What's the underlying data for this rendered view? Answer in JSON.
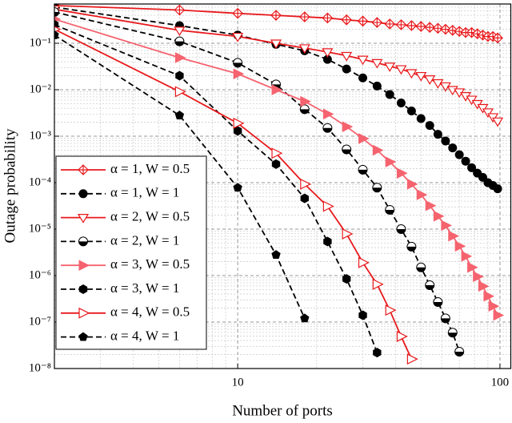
{
  "chart_data": {
    "type": "line",
    "xlabel": "Number of ports",
    "ylabel": "Outage probability",
    "xscale": "log",
    "yscale": "log",
    "xlim": [
      2,
      110
    ],
    "ylim": [
      1e-08,
      0.7
    ],
    "xticks": [
      10,
      100
    ],
    "yticks": [
      {
        "value": 1e-08,
        "label": "10⁻⁸"
      },
      {
        "value": 1e-07,
        "label": "10⁻⁷"
      },
      {
        "value": 1e-06,
        "label": "10⁻⁶"
      },
      {
        "value": 1e-05,
        "label": "10⁻⁵"
      },
      {
        "value": 0.0001,
        "label": "10⁻⁴"
      },
      {
        "value": 0.001,
        "label": "10⁻³"
      },
      {
        "value": 0.01,
        "label": "10⁻²"
      },
      {
        "value": 0.1,
        "label": "10⁻¹"
      }
    ],
    "xminorticks": [
      3,
      4,
      5,
      6,
      7,
      8,
      9,
      20,
      30,
      40,
      50,
      60,
      70,
      80,
      90
    ],
    "yminorticks": [
      2e-08,
      3e-08,
      4e-08,
      5e-08,
      6e-08,
      7e-08,
      8e-08,
      9e-08,
      2e-07,
      3e-07,
      4e-07,
      5e-07,
      6e-07,
      7e-07,
      8e-07,
      9e-07,
      2e-06,
      3e-06,
      4e-06,
      5e-06,
      6e-06,
      7e-06,
      8e-06,
      9e-06,
      2e-05,
      3e-05,
      4e-05,
      5e-05,
      6e-05,
      7e-05,
      8e-05,
      9e-05,
      0.0002,
      0.0003,
      0.0004,
      0.0005,
      0.0006,
      0.0007,
      0.0008,
      0.0009,
      0.002,
      0.003,
      0.004,
      0.005,
      0.006,
      0.007,
      0.008,
      0.009,
      0.02,
      0.03,
      0.04,
      0.05,
      0.06,
      0.07,
      0.08,
      0.09,
      0.2,
      0.3,
      0.4,
      0.5,
      0.6
    ],
    "grid": true,
    "legend": "lower left",
    "x": [
      2,
      6,
      10,
      14,
      18,
      22,
      26,
      30,
      34,
      38,
      42,
      46,
      50,
      54,
      58,
      62,
      66,
      70,
      74,
      78,
      82,
      86,
      90,
      94,
      98
    ],
    "series": [
      {
        "name": "α = 1, W = 0.5",
        "color": "#e8191c",
        "linestyle": "solid",
        "marker": "diamond",
        "values": [
          0.65,
          0.52,
          0.44,
          0.4,
          0.37,
          0.35,
          0.32,
          0.3,
          0.28,
          0.26,
          0.25,
          0.24,
          0.23,
          0.22,
          0.21,
          0.2,
          0.19,
          0.18,
          0.17,
          0.17,
          0.16,
          0.15,
          0.14,
          0.14,
          0.13
        ]
      },
      {
        "name": "α = 1, W = 1",
        "color": "#000000",
        "linestyle": "dashed",
        "marker": "circle",
        "values": [
          0.6,
          0.24,
          0.15,
          0.095,
          0.069,
          0.045,
          0.028,
          0.018,
          0.012,
          0.0079,
          0.0052,
          0.0035,
          0.0024,
          0.0017,
          0.0011,
          0.00079,
          0.00056,
          0.0004,
          0.00029,
          0.00021,
          0.00016,
          0.00013,
          0.0001,
          8.7e-05,
          7.4e-05
        ]
      },
      {
        "name": "α = 2, W = 0.5",
        "color": "#e8191c",
        "linestyle": "solid",
        "marker": "triangle-down",
        "values": [
          0.54,
          0.19,
          0.14,
          0.1,
          0.079,
          0.065,
          0.054,
          0.045,
          0.038,
          0.032,
          0.028,
          0.023,
          0.02,
          0.017,
          0.014,
          0.012,
          0.01,
          0.0089,
          0.0074,
          0.0062,
          0.005,
          0.0041,
          0.0033,
          0.0026,
          0.0021
        ]
      },
      {
        "name": "α = 2, W = 1",
        "color": "#000000",
        "linestyle": "dashed",
        "marker": "half-circle",
        "values": [
          0.47,
          0.11,
          0.038,
          0.013,
          0.0038,
          0.0015,
          0.00052,
          0.00019,
          7.8e-05,
          2.6e-05,
          1e-05,
          4.2e-06,
          1.5e-06,
          6.2e-07,
          2.7e-07,
          1.2e-07,
          5.9e-08,
          2.3e-08,
          null,
          null,
          null,
          null,
          null,
          null,
          null
        ]
      },
      {
        "name": "α = 3, W = 0.5",
        "color": "#f5636f",
        "linestyle": "solid",
        "marker": "triangle-right-filled",
        "values": [
          0.33,
          0.049,
          0.022,
          0.01,
          0.0056,
          0.003,
          0.0016,
          0.00089,
          0.0005,
          0.00028,
          0.00016,
          9.3e-05,
          5.5e-05,
          3.2e-05,
          1.9e-05,
          1.2e-05,
          7.1e-06,
          4.3e-06,
          2.6e-06,
          1.5e-06,
          9.5e-07,
          5.9e-07,
          3.6e-07,
          2.2e-07,
          1.4e-07
        ]
      },
      {
        "name": "α = 3, W = 1",
        "color": "#000000",
        "linestyle": "dashed",
        "marker": "hexagon",
        "values": [
          0.25,
          0.02,
          0.0013,
          0.00025,
          4.6e-05,
          5.4e-06,
          8.5e-07,
          1.4e-07,
          2.2e-08,
          null,
          null,
          null,
          null,
          null,
          null,
          null,
          null,
          null,
          null,
          null,
          null,
          null,
          null,
          null,
          null
        ]
      },
      {
        "name": "α = 4, W = 0.5",
        "color": "#e8191c",
        "linestyle": "solid",
        "marker": "triangle-right",
        "values": [
          0.2,
          0.0091,
          0.0019,
          0.00043,
          9.3e-05,
          3.1e-05,
          7.9e-06,
          1.9e-06,
          6.5e-07,
          1.8e-07,
          4.9e-08,
          1.6e-08,
          null,
          null,
          null,
          null,
          null,
          null,
          null,
          null,
          null,
          null,
          null,
          null,
          null
        ]
      },
      {
        "name": "α = 4, W = 1",
        "color": "#000000",
        "linestyle": "dashed",
        "marker": "pentagon",
        "values": [
          0.15,
          0.0028,
          7.8e-05,
          2.8e-06,
          1.2e-07,
          null,
          null,
          null,
          null,
          null,
          null,
          null,
          null,
          null,
          null,
          null,
          null,
          null,
          null,
          null,
          null,
          null,
          null,
          null,
          null
        ]
      }
    ]
  }
}
